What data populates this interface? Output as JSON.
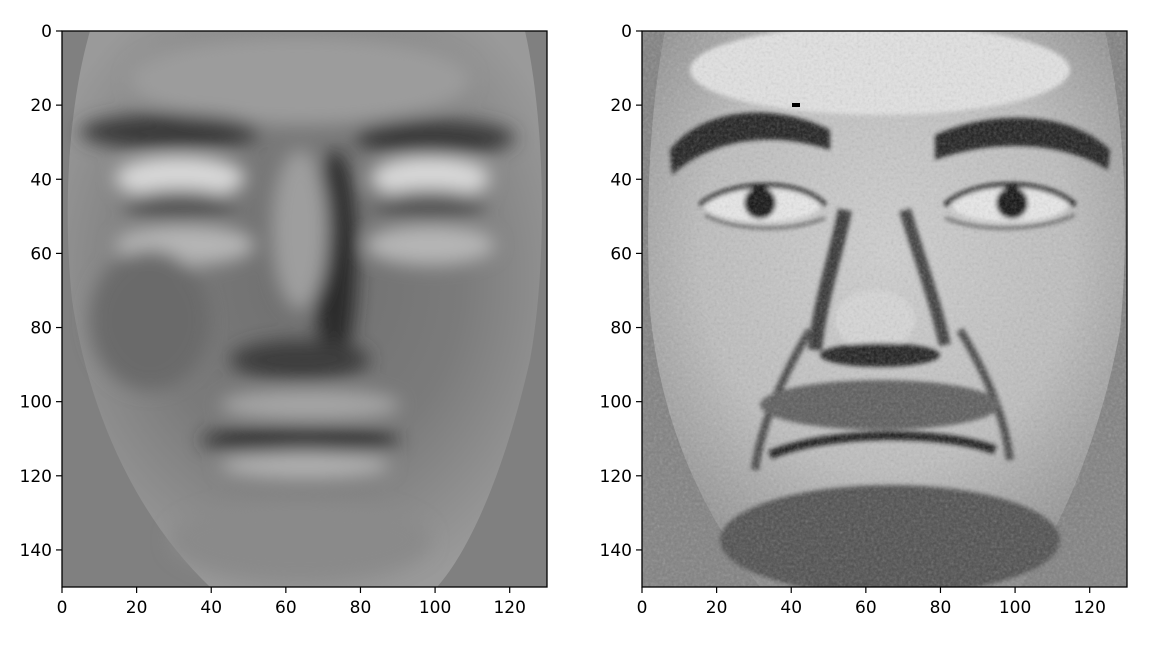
{
  "figure": {
    "panels": [
      {
        "id": "left",
        "description_name": "smooth-reconstructed-face",
        "x_ticks": [
          "0",
          "20",
          "40",
          "60",
          "80",
          "100",
          "120"
        ],
        "y_ticks": [
          "0",
          "20",
          "40",
          "60",
          "80",
          "100",
          "120",
          "140"
        ]
      },
      {
        "id": "right",
        "description_name": "detailed-original-face",
        "x_ticks": [
          "0",
          "20",
          "40",
          "60",
          "80",
          "100",
          "120"
        ],
        "y_ticks": [
          "0",
          "20",
          "40",
          "60",
          "80",
          "100",
          "120",
          "140"
        ]
      }
    ],
    "x_range": [
      0,
      130
    ],
    "y_range": [
      0,
      150
    ],
    "background_gray": "#808080",
    "axis_color": "#000000"
  }
}
